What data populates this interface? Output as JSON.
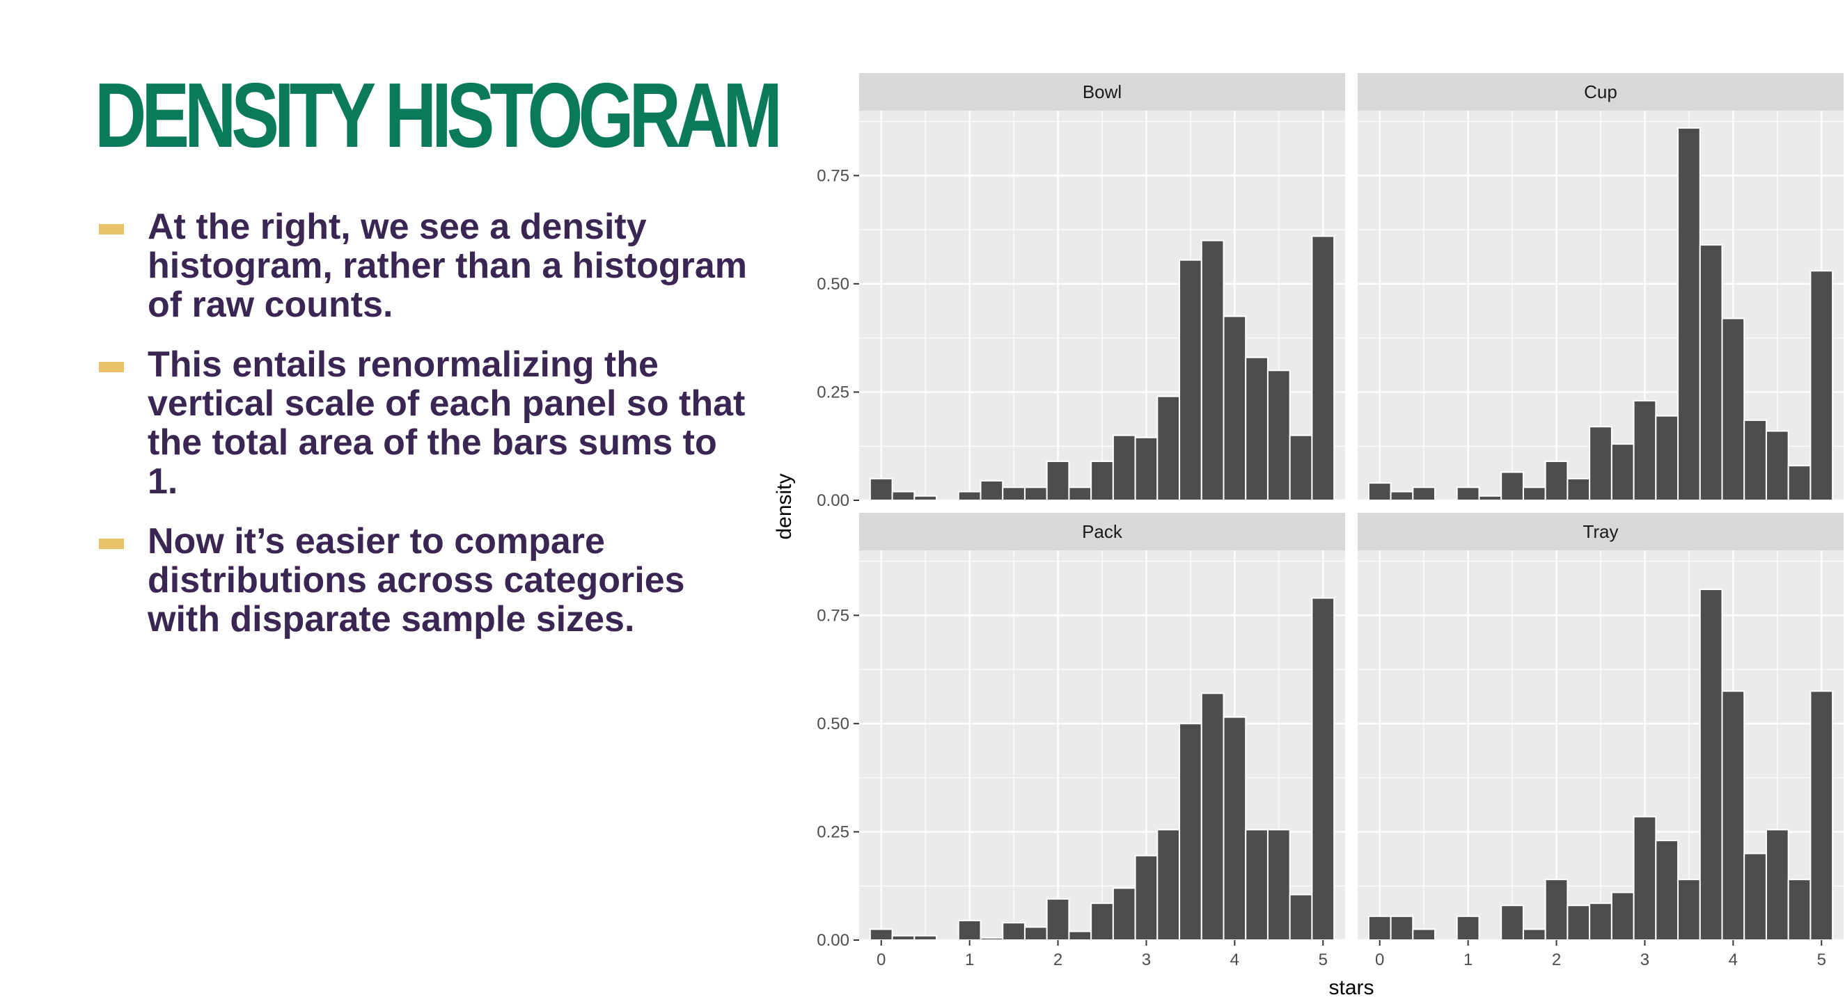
{
  "slide": {
    "title": "DENSITY HISTOGRAM",
    "bullets": [
      "At the right, we see a density histogram, rather than a histogram of raw counts.",
      "This entails renormalizing the vertical scale of each panel so that the total area of the bars sums to 1.",
      "Now it’s easier to compare distributions across categories with disparate sample sizes."
    ]
  },
  "colors": {
    "title": "#0a7a5a",
    "text": "#3a2652",
    "bullet_dash": "#eac068",
    "bar_fill": "#4d4d4d",
    "panel_background": "#ebebeb",
    "strip_background": "#d9d9d9"
  },
  "chart_data": {
    "type": "bar",
    "subtype": "faceted density histogram",
    "xlabel": "stars",
    "ylabel": "density",
    "xlim": [
      -0.25,
      5.25
    ],
    "ylim": [
      0,
      0.9
    ],
    "x_ticks": [
      "0",
      "1",
      "2",
      "3",
      "4",
      "5"
    ],
    "y_ticks": [
      "0.00",
      "0.25",
      "0.50",
      "0.75"
    ],
    "grid": true,
    "bin_width": 0.25,
    "bin_centers": [
      0,
      0.25,
      0.5,
      0.75,
      1,
      1.25,
      1.5,
      1.75,
      2,
      2.25,
      2.5,
      2.75,
      3,
      3.25,
      3.5,
      3.75,
      4,
      4.25,
      4.5,
      4.75,
      5
    ],
    "panels": [
      {
        "name": "Bowl",
        "values": [
          0.05,
          0.02,
          0.01,
          0,
          0.02,
          0.045,
          0.03,
          0.03,
          0.09,
          0.03,
          0.09,
          0.15,
          0.145,
          0.24,
          0.555,
          0.6,
          0.425,
          0.33,
          0.3,
          0.15,
          0.61
        ]
      },
      {
        "name": "Cup",
        "values": [
          0.04,
          0.02,
          0.03,
          0,
          0.03,
          0.01,
          0.065,
          0.03,
          0.09,
          0.05,
          0.17,
          0.13,
          0.23,
          0.195,
          0.86,
          0.59,
          0.42,
          0.185,
          0.16,
          0.08,
          0.53
        ]
      },
      {
        "name": "Pack",
        "values": [
          0.025,
          0.01,
          0.01,
          0,
          0.045,
          0.005,
          0.04,
          0.03,
          0.095,
          0.02,
          0.085,
          0.12,
          0.195,
          0.255,
          0.5,
          0.57,
          0.515,
          0.255,
          0.255,
          0.105,
          0.79
        ]
      },
      {
        "name": "Tray",
        "values": [
          0.055,
          0.055,
          0.025,
          0,
          0.055,
          0,
          0.08,
          0.025,
          0.14,
          0.08,
          0.085,
          0.11,
          0.285,
          0.23,
          0.14,
          0.81,
          0.575,
          0.2,
          0.255,
          0.14,
          0.575
        ]
      }
    ]
  }
}
